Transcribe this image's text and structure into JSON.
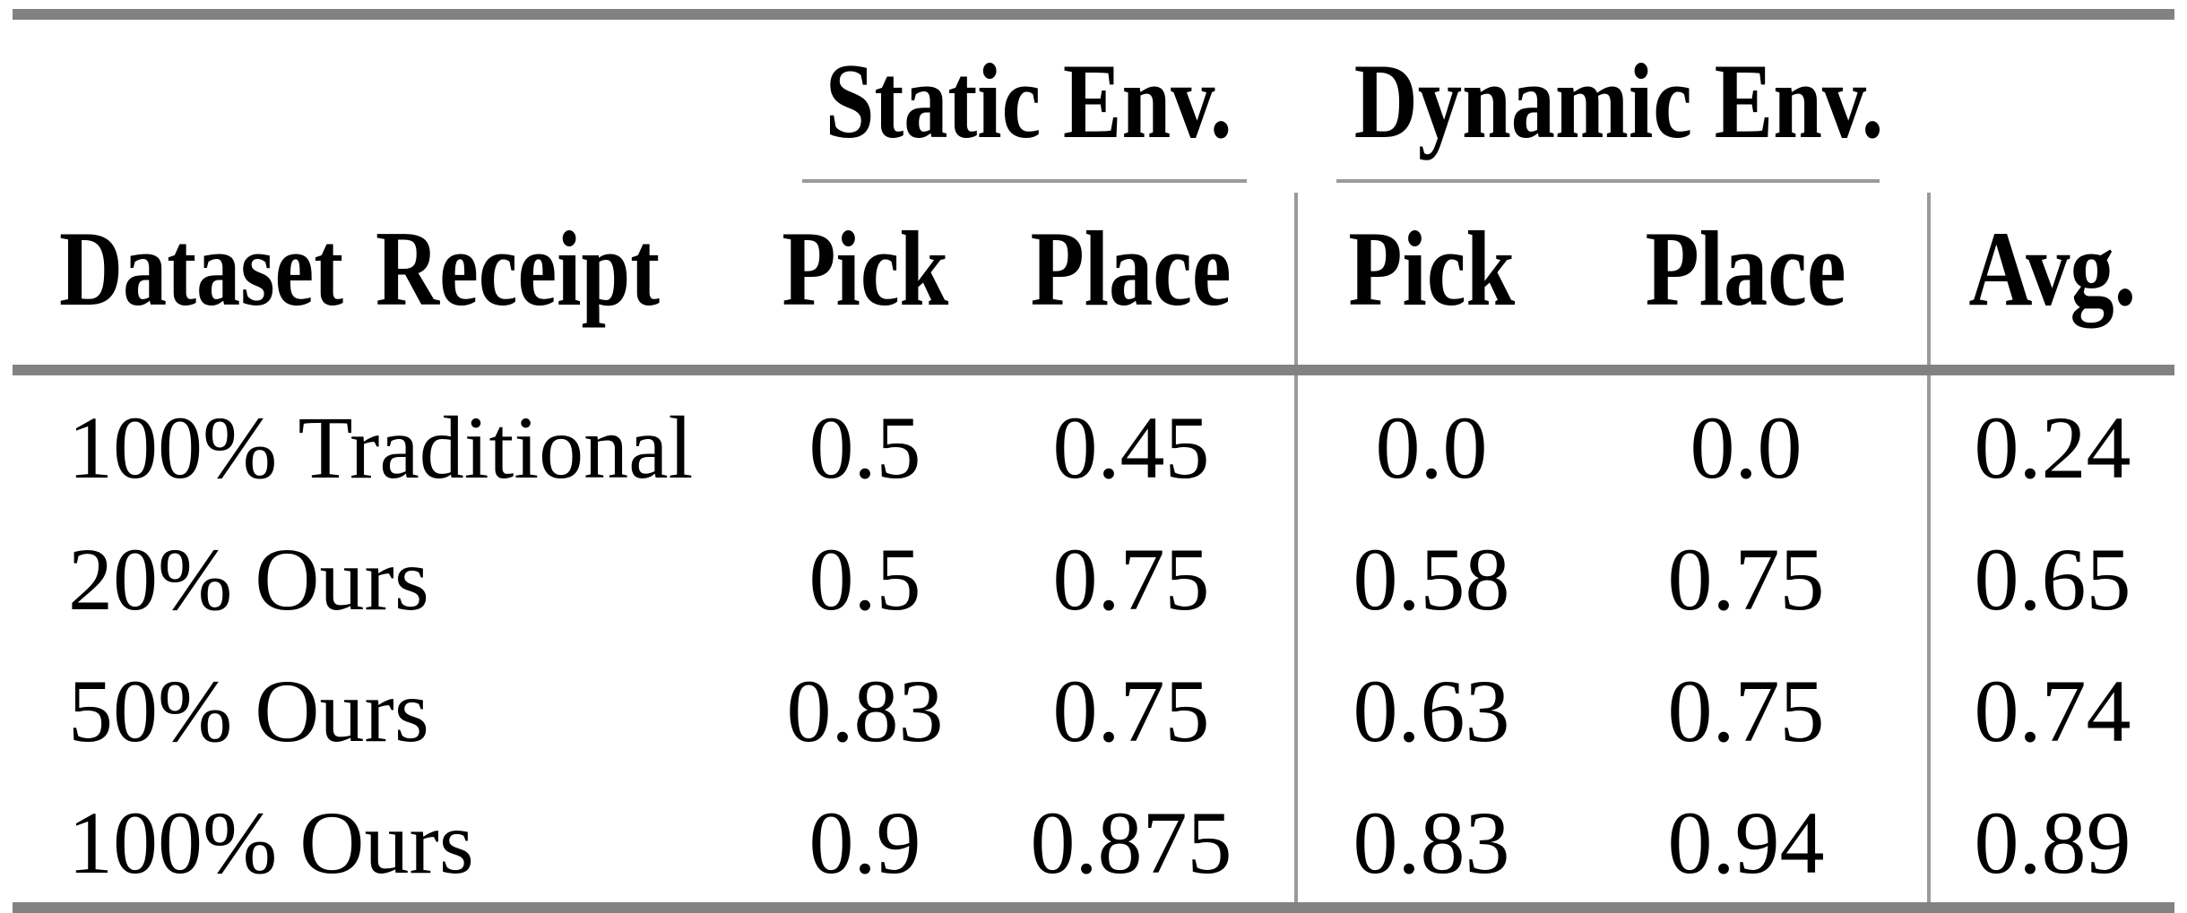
{
  "page": {
    "background": "#ffffff"
  },
  "colors": {
    "thick_rule": "#828282",
    "thin_rule": "#9a9a9a",
    "text": "#000000"
  },
  "table": {
    "group_headers": {
      "static": "Static Env.",
      "dynamic": "Dynamic Env."
    },
    "column_headers": {
      "dataset": "Dataset Receipt",
      "static_pick": "Pick",
      "static_place": "Place",
      "dynamic_pick": "Pick",
      "dynamic_place": "Place",
      "avg": "Avg."
    },
    "rows": [
      {
        "label": "100% Traditional",
        "static_pick": "0.5",
        "static_place": "0.45",
        "dynamic_pick": "0.0",
        "dynamic_place": "0.0",
        "avg": "0.24"
      },
      {
        "label": "20% Ours",
        "static_pick": "0.5",
        "static_place": "0.75",
        "dynamic_pick": "0.58",
        "dynamic_place": "0.75",
        "avg": "0.65"
      },
      {
        "label": "50% Ours",
        "static_pick": "0.83",
        "static_place": "0.75",
        "dynamic_pick": "0.63",
        "dynamic_place": "0.75",
        "avg": "0.74"
      },
      {
        "label": "100% Ours",
        "static_pick": "0.9",
        "static_place": "0.875",
        "dynamic_pick": "0.83",
        "dynamic_place": "0.94",
        "avg": "0.89"
      }
    ]
  }
}
